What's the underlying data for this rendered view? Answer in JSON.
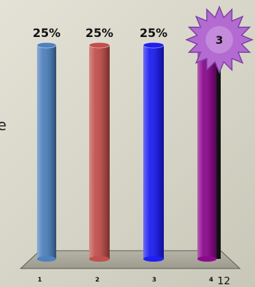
{
  "chart_data": {
    "type": "bar",
    "categories": [
      "1",
      "2",
      "3",
      "4"
    ],
    "values": [
      25,
      25,
      25,
      25
    ],
    "data_labels": [
      "25%",
      "25%",
      "25%",
      ""
    ],
    "ylim": [
      0,
      25
    ],
    "grid": false,
    "legend": "none",
    "colors": [
      "#4f81bd",
      "#c0504d",
      "#1f1ff0",
      "#8b0a8b"
    ]
  },
  "badge": {
    "text": "3"
  },
  "page_number": "12",
  "side_text": "e"
}
